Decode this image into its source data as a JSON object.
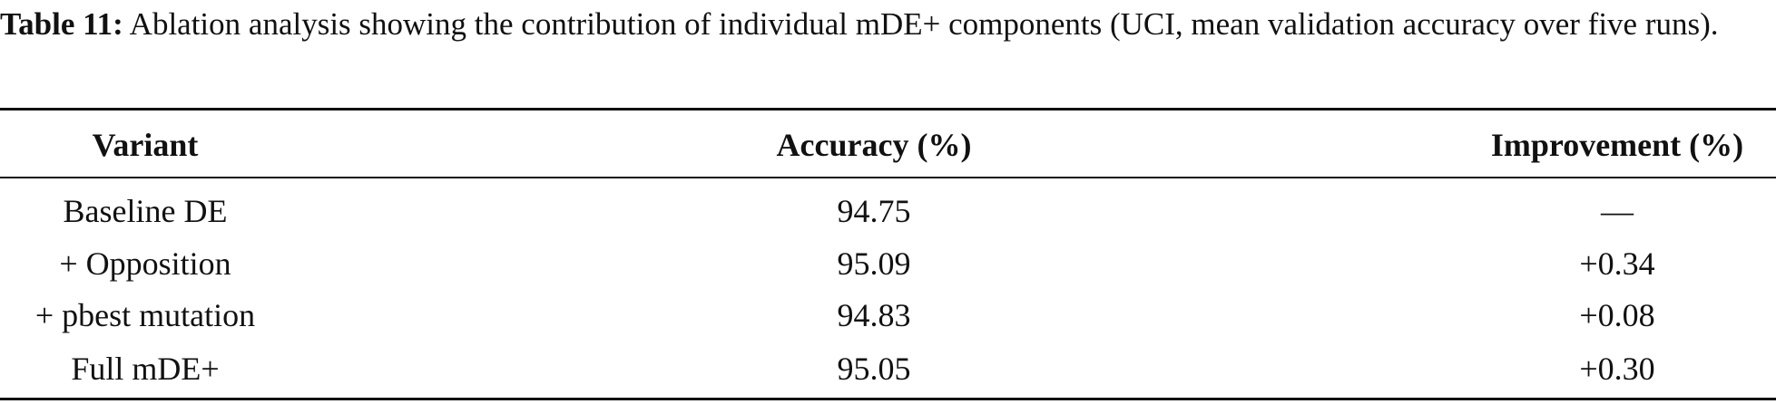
{
  "caption": {
    "label": "Table 11:",
    "text": "Ablation analysis showing the contribution of individual mDE+ components (UCI, mean validation accuracy over five runs)."
  },
  "table": {
    "header": [
      "Variant",
      "Accuracy (%)",
      "Improvement (%)"
    ],
    "rows": [
      [
        "Baseline DE",
        "94.75",
        "—"
      ],
      [
        "+ Opposition",
        "95.09",
        "+0.34"
      ],
      [
        "+ pbest mutation",
        "94.83",
        "+0.08"
      ],
      [
        "Full mDE+",
        "95.05",
        "+0.30"
      ]
    ]
  }
}
